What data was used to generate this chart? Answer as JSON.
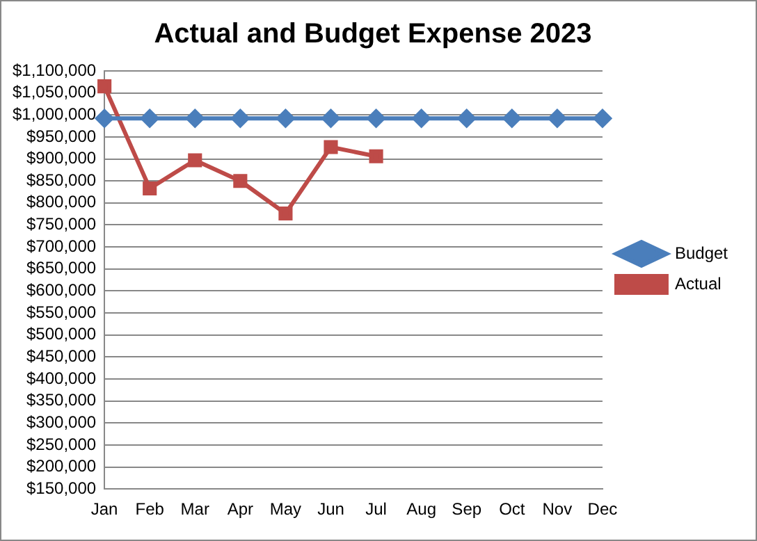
{
  "chart_data": {
    "type": "line",
    "title": "Actual and Budget Expense 2023",
    "categories": [
      "Jan",
      "Feb",
      "Mar",
      "Apr",
      "May",
      "Jun",
      "Jul",
      "Aug",
      "Sep",
      "Oct",
      "Nov",
      "Dec"
    ],
    "series": [
      {
        "name": "Budget",
        "color": "#4a7ebb",
        "marker": "diamond",
        "values": [
          992000,
          992000,
          992000,
          992000,
          992000,
          992000,
          992000,
          992000,
          992000,
          992000,
          992000,
          992000
        ]
      },
      {
        "name": "Actual",
        "color": "#be4b48",
        "marker": "square",
        "values": [
          1065000,
          833000,
          897000,
          850000,
          776000,
          927000,
          906000,
          null,
          null,
          null,
          null,
          null
        ]
      }
    ],
    "ylim": [
      150000,
      1100000
    ],
    "yticks": [
      {
        "value": 150000,
        "label": "$150,000"
      },
      {
        "value": 200000,
        "label": "$200,000"
      },
      {
        "value": 250000,
        "label": "$250,000"
      },
      {
        "value": 300000,
        "label": "$300,000"
      },
      {
        "value": 350000,
        "label": "$350,000"
      },
      {
        "value": 400000,
        "label": "$400,000"
      },
      {
        "value": 450000,
        "label": "$450,000"
      },
      {
        "value": 500000,
        "label": "$500,000"
      },
      {
        "value": 550000,
        "label": "$550,000"
      },
      {
        "value": 600000,
        "label": "$600,000"
      },
      {
        "value": 650000,
        "label": "$650,000"
      },
      {
        "value": 700000,
        "label": "$700,000"
      },
      {
        "value": 750000,
        "label": "$750,000"
      },
      {
        "value": 800000,
        "label": "$800,000"
      },
      {
        "value": 850000,
        "label": "$850,000"
      },
      {
        "value": 900000,
        "label": "$900,000"
      },
      {
        "value": 950000,
        "label": "$950,000"
      },
      {
        "value": 1000000,
        "label": "$1,000,000"
      },
      {
        "value": 1050000,
        "label": "$1,050,000"
      },
      {
        "value": 1100000,
        "label": "$1,100,000"
      }
    ],
    "grid": "y",
    "legend": "right",
    "line_style": "solid"
  }
}
